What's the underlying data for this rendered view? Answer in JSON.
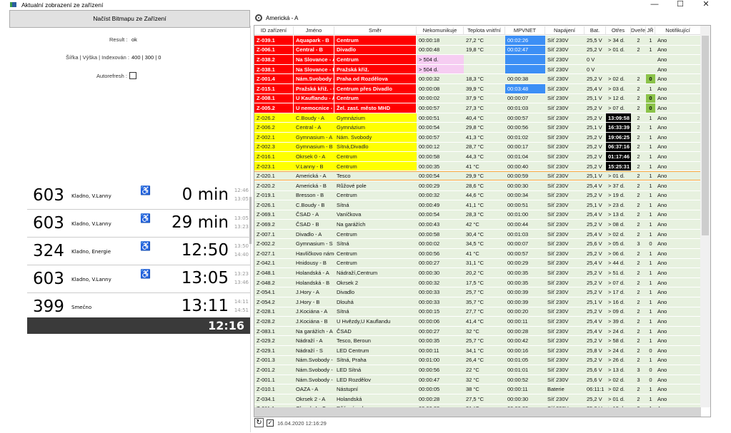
{
  "window": {
    "title": "Aktualní zobrazení ze zařízení",
    "controls": [
      "—",
      "☐",
      "✕"
    ]
  },
  "left": {
    "load_button": "Načíst Bitmapu ze Zařízení",
    "result_label": "Result :",
    "result_value": "ok",
    "dims_label": "Šířka | Výška | Indexován :",
    "dims_value": "400 | 300 | 0",
    "autorefresh_label": "Autorefresh :",
    "autorefresh_checked": false,
    "board": {
      "rows": [
        {
          "line": "603",
          "dest": "Kladno, V.Lanny",
          "wheelchair": true,
          "time": "0 min",
          "t1": "12:46",
          "t2": "13:05"
        },
        {
          "line": "603",
          "dest": "Kladno, V.Lanny",
          "wheelchair": true,
          "time": "29 min",
          "t1": "13:05",
          "t2": "13:23"
        },
        {
          "line": "324",
          "dest": "Kladno, Energie",
          "wheelchair": true,
          "time": "12:50",
          "t1": "13:50",
          "t2": "14:40"
        },
        {
          "line": "603",
          "dest": "Kladno, V.Lanny",
          "wheelchair": true,
          "time": "13:05",
          "t1": "13:23",
          "t2": "13:46"
        },
        {
          "line": "399",
          "dest": "Smečno",
          "wheelchair": false,
          "time": "13:11",
          "t1": "14:11",
          "t2": "14:51"
        }
      ],
      "clock": "12:16"
    }
  },
  "right": {
    "selected_device": "Americká - A",
    "columns": [
      "ID zařízení",
      "Jméno",
      "Směr",
      "Nekomunikuje",
      "Teplota vnitřní",
      "MPVNET",
      "Napájení",
      "Bat.",
      "Otřes",
      "Dveře",
      "JŘ",
      "Notifikující"
    ],
    "rows": [
      {
        "s": "alarm",
        "hl": [
          "mpv"
        ],
        "c": [
          "Z-039.1",
          "Aquapark - B",
          "Centrum",
          "00:00:18",
          "27,2 °C",
          "00:02:26",
          "Síť 230V",
          "25,5 V",
          "> 34 d.",
          "2",
          "1",
          "Ano"
        ]
      },
      {
        "s": "alarm",
        "hl": [
          "mpv"
        ],
        "c": [
          "Z-006.1",
          "Central - B",
          "Divadlo",
          "00:00:48",
          "19,8 °C",
          "00:02:47",
          "Síť 230V",
          "25,2 V",
          "> 01 d.",
          "2",
          "1",
          "Ano"
        ]
      },
      {
        "s": "alarm",
        "hl": [
          "mpv",
          "nek"
        ],
        "c": [
          "Z-038.2",
          "Na Slovance - A",
          "Centrum",
          "> 504 d.",
          "",
          "",
          "Síť 230V",
          "0 V",
          "",
          "",
          "",
          "Ano"
        ]
      },
      {
        "s": "alarm",
        "hl": [
          "mpv",
          "nek"
        ],
        "c": [
          "Z-038.1",
          "Na Slovance - B",
          "Pražská křiž.",
          "> 504 d.",
          "",
          "",
          "Síť 230V",
          "0 V",
          "",
          "",
          "",
          "Ano"
        ]
      },
      {
        "s": "alarm",
        "hl": [
          "jr"
        ],
        "c": [
          "Z-001.4",
          "Nám.Svobody - G",
          "Praha od Rozdělova",
          "00:00:32",
          "18,3 °C",
          "00:00:38",
          "Síť 230V",
          "25,2 V",
          "> 02 d.",
          "2",
          "0",
          "Ano"
        ]
      },
      {
        "s": "alarm",
        "hl": [
          "mpv"
        ],
        "c": [
          "Z-015.1",
          "Pražská křiž. - C",
          "Centrum přes Divadlo",
          "00:00:08",
          "39,9 °C",
          "00:03:48",
          "Síť 230V",
          "25,4 V",
          "> 03 d.",
          "2",
          "1",
          "Ano"
        ]
      },
      {
        "s": "alarm",
        "hl": [
          "jr"
        ],
        "c": [
          "Z-008.1",
          "U Kauflandu - A",
          "Centrum",
          "00:00:02",
          "37,9 °C",
          "00:00:07",
          "Síť 230V",
          "25,1 V",
          "> 12 d.",
          "2",
          "0",
          "Ano"
        ]
      },
      {
        "s": "alarm",
        "hl": [
          "jr"
        ],
        "c": [
          "Z-005.2",
          "U nemocnice - C",
          "Žel. zast. město MHD",
          "00:00:57",
          "27,3 °C",
          "00:01:03",
          "Síť 230V",
          "25,2 V",
          "> 07 d.",
          "2",
          "0",
          "Ano"
        ]
      },
      {
        "s": "warn",
        "hl": [
          "otr"
        ],
        "c": [
          "Z-026.2",
          "C.Boudy - A",
          "Gymnázium",
          "00:00:51",
          "40,4 °C",
          "00:00:57",
          "Síť 230V",
          "25,2 V",
          "13:09:58",
          "2",
          "1",
          "Ano"
        ]
      },
      {
        "s": "warn",
        "hl": [
          "otr"
        ],
        "c": [
          "Z-006.2",
          "Central - A",
          "Gymnázium",
          "00:00:54",
          "29,8 °C",
          "00:00:56",
          "Síť 230V",
          "25,1 V",
          "16:33:39",
          "2",
          "1",
          "Ano"
        ]
      },
      {
        "s": "warn",
        "hl": [
          "otr"
        ],
        "c": [
          "Z-002.1",
          "Gymnasium - A",
          "Nám. Svobody",
          "00:00:57",
          "41,3 °C",
          "00:01:02",
          "Síť 230V",
          "25,2 V",
          "19:06:25",
          "2",
          "1",
          "Ano"
        ]
      },
      {
        "s": "warn",
        "hl": [
          "otr"
        ],
        "c": [
          "Z-002.3",
          "Gymnasium - B",
          "Sítná,Divadlo",
          "00:00:12",
          "28,7 °C",
          "00:00:17",
          "Síť 230V",
          "25,2 V",
          "06:37:16",
          "2",
          "1",
          "Ano"
        ]
      },
      {
        "s": "warn",
        "hl": [
          "otr"
        ],
        "c": [
          "Z-016.1",
          "Okrsek 0 - A",
          "Centrum",
          "00:00:58",
          "44,3 °C",
          "00:01:04",
          "Síť 230V",
          "25,2 V",
          "01:17:46",
          "2",
          "1",
          "Ano"
        ]
      },
      {
        "s": "warn",
        "hl": [
          "otr"
        ],
        "c": [
          "Z-023.1",
          "V.Lanny - B",
          "Centrum",
          "00:00:35",
          "41 °C",
          "00:00:40",
          "Síť 230V",
          "25,2 V",
          "15:25:31",
          "2",
          "1",
          "Ano"
        ]
      },
      {
        "s": "selected",
        "hl": [],
        "c": [
          "Z-020.1",
          "Americká - A",
          "Tesco",
          "00:00:54",
          "29,9 °C",
          "00:00:59",
          "Síť 230V",
          "25,1 V",
          "> 01 d.",
          "2",
          "1",
          "Ano"
        ]
      },
      {
        "s": "ok",
        "hl": [],
        "c": [
          "Z-020.2",
          "Americká - B",
          "Růžové pole",
          "00:00:29",
          "28,6 °C",
          "00:00:30",
          "Síť 230V",
          "25,4 V",
          "> 37 d.",
          "2",
          "1",
          "Ano"
        ]
      },
      {
        "s": "ok",
        "hl": [],
        "c": [
          "Z-019.1",
          "Bresson - B",
          "Centrum",
          "00:00:32",
          "44,6 °C",
          "00:00:34",
          "Síť 230V",
          "25,2 V",
          "> 19 d.",
          "2",
          "1",
          "Ano"
        ]
      },
      {
        "s": "ok",
        "hl": [],
        "c": [
          "Z-026.1",
          "C.Boudy - B",
          "Sítná",
          "00:00:49",
          "41,1 °C",
          "00:00:51",
          "Síť 230V",
          "25,1 V",
          "> 23 d.",
          "2",
          "1",
          "Ano"
        ]
      },
      {
        "s": "ok",
        "hl": [],
        "c": [
          "Z-069.1",
          "ČSAD - A",
          "Vaníčkova",
          "00:00:54",
          "28,3 °C",
          "00:01:00",
          "Síť 230V",
          "25,4 V",
          "> 13 d.",
          "2",
          "1",
          "Ano"
        ]
      },
      {
        "s": "ok",
        "hl": [],
        "c": [
          "Z-069.2",
          "ČSAD - B",
          "Na garážích",
          "00:00:43",
          "42 °C",
          "00:00:44",
          "Síť 230V",
          "25,2 V",
          "> 08 d.",
          "2",
          "1",
          "Ano"
        ]
      },
      {
        "s": "ok",
        "hl": [],
        "c": [
          "Z-007.1",
          "Divadlo - A",
          "Centrum",
          "00:00:58",
          "30,4 °C",
          "00:01:03",
          "Síť 230V",
          "25,4 V",
          "> 02 d.",
          "2",
          "1",
          "Ano"
        ]
      },
      {
        "s": "ok",
        "hl": [],
        "c": [
          "Z-002.2",
          "Gymnasium - S",
          "Sítná",
          "00:00:02",
          "34,5 °C",
          "00:00:07",
          "Síť 230V",
          "25,6 V",
          "> 05 d.",
          "3",
          "0",
          "Ano"
        ]
      },
      {
        "s": "ok",
        "hl": [],
        "c": [
          "Z-027.1",
          "Havlíčkovo náměstí",
          "Centrum",
          "00:00:56",
          "41 °C",
          "00:00:57",
          "Síť 230V",
          "25,2 V",
          "> 06 d.",
          "2",
          "1",
          "Ano"
        ]
      },
      {
        "s": "ok",
        "hl": [],
        "c": [
          "Z-042.1",
          "Hnidousy - B",
          "Centrum",
          "00:00:27",
          "31,1 °C",
          "00:00:29",
          "Síť 230V",
          "25,4 V",
          "> 44 d.",
          "2",
          "1",
          "Ano"
        ]
      },
      {
        "s": "ok",
        "hl": [],
        "c": [
          "Z-048.1",
          "Holandská - A",
          "Nádraží,Centrum",
          "00:00:30",
          "20,2 °C",
          "00:00:35",
          "Síť 230V",
          "25,2 V",
          "> 51 d.",
          "2",
          "1",
          "Ano"
        ]
      },
      {
        "s": "ok",
        "hl": [],
        "c": [
          "Z-048.2",
          "Holandská - B",
          "Okrsek 2",
          "00:00:32",
          "17,5 °C",
          "00:00:35",
          "Síť 230V",
          "25,2 V",
          "> 07 d.",
          "2",
          "1",
          "Ano"
        ]
      },
      {
        "s": "ok",
        "hl": [],
        "c": [
          "Z-054.1",
          "J.Hory - A",
          "Divadlo",
          "00:00:33",
          "25,7 °C",
          "00:00:39",
          "Síť 230V",
          "25,2 V",
          "> 17 d.",
          "2",
          "1",
          "Ano"
        ]
      },
      {
        "s": "ok",
        "hl": [],
        "c": [
          "Z-054.2",
          "J.Hory - B",
          "Dlouhá",
          "00:00:33",
          "35,7 °C",
          "00:00:39",
          "Síť 230V",
          "25,1 V",
          "> 16 d.",
          "2",
          "1",
          "Ano"
        ]
      },
      {
        "s": "ok",
        "hl": [],
        "c": [
          "Z-028.1",
          "J.Kociána - A",
          "Sítná",
          "00:00:15",
          "27,7 °C",
          "00:00:20",
          "Síť 230V",
          "25,2 V",
          "> 09 d.",
          "2",
          "1",
          "Ano"
        ]
      },
      {
        "s": "ok",
        "hl": [],
        "c": [
          "Z-028.2",
          "J.Kociána - B",
          "U Hvězdy,U Kauflandu",
          "00:00:06",
          "41,4 °C",
          "00:00:11",
          "Síť 230V",
          "25,4 V",
          "> 39 d.",
          "2",
          "1",
          "Ano"
        ]
      },
      {
        "s": "ok",
        "hl": [],
        "c": [
          "Z-083.1",
          "Na garážích - A",
          "ČSAD",
          "00:00:27",
          "32 °C",
          "00:00:28",
          "Síť 230V",
          "25,4 V",
          "> 24 d.",
          "2",
          "1",
          "Ano"
        ]
      },
      {
        "s": "ok",
        "hl": [],
        "c": [
          "Z-029.2",
          "Nádraží - A",
          "Tesco, Beroun",
          "00:00:35",
          "25,7 °C",
          "00:00:42",
          "Síť 230V",
          "25,2 V",
          "> 58 d.",
          "2",
          "1",
          "Ano"
        ]
      },
      {
        "s": "ok",
        "hl": [],
        "c": [
          "Z-029.1",
          "Nádraží - S",
          "LED Centrum",
          "00:00:11",
          "34,1 °C",
          "00:00:16",
          "Síť 230V",
          "25,8 V",
          "> 24 d.",
          "2",
          "0",
          "Ano"
        ]
      },
      {
        "s": "ok",
        "hl": [],
        "c": [
          "Z-001.3",
          "Nám.Svobody - I",
          "Sítná, Praha",
          "00:01:00",
          "26,4 °C",
          "00:01:05",
          "Síť 230V",
          "25,2 V",
          "> 26 d.",
          "2",
          "1",
          "Ano"
        ]
      },
      {
        "s": "ok",
        "hl": [],
        "c": [
          "Z-001.2",
          "Nám.Svobody - S",
          "LED Sítná",
          "00:00:56",
          "22 °C",
          "00:01:01",
          "Síť 230V",
          "25,6 V",
          "> 13 d.",
          "3",
          "0",
          "Ano"
        ]
      },
      {
        "s": "ok",
        "hl": [],
        "c": [
          "Z-001.1",
          "Nám.Svobody - S",
          "LED Rozdělov",
          "00:00:47",
          "32 °C",
          "00:00:52",
          "Síť 230V",
          "25,6 V",
          "> 02 d.",
          "3",
          "0",
          "Ano"
        ]
      },
      {
        "s": "ok",
        "hl": [],
        "c": [
          "Z-010.1",
          "OAZA - A",
          "Nástupní",
          "00:00:05",
          "38 °C",
          "00:00:11",
          "Baterie",
          "06:11:1",
          "> 02 d.",
          "2",
          "1",
          "Ano"
        ]
      },
      {
        "s": "ok",
        "hl": [],
        "c": [
          "Z-034.1",
          "Okrsek 2 - A",
          "Holandská",
          "00:00:28",
          "27,5 °C",
          "00:00:30",
          "Síť 230V",
          "25,2 V",
          "> 01 d.",
          "2",
          "1",
          "Ano"
        ]
      },
      {
        "s": "ok",
        "hl": [],
        "c": [
          "Z-011.1",
          "Okrsek 4 - C",
          "Růžové pole",
          "00:00:33",
          "31 °C",
          "00:00:39",
          "Síť 230V",
          "25,2 V",
          "> 12 d.",
          "2",
          "1",
          "Ano"
        ]
      }
    ],
    "footer": {
      "checkbox_checked": true,
      "timestamp": "16.04.2020 12:16:29"
    }
  },
  "colors": {
    "alarm": "#ff0000",
    "warning": "#ffff00",
    "ok_row": "#e7f1df",
    "mpvnet_alert": "#3c8ff5",
    "no_comm": "#f6cdf2",
    "jr_zero": "#8bc34a",
    "selected_border": "#f4a53c"
  }
}
